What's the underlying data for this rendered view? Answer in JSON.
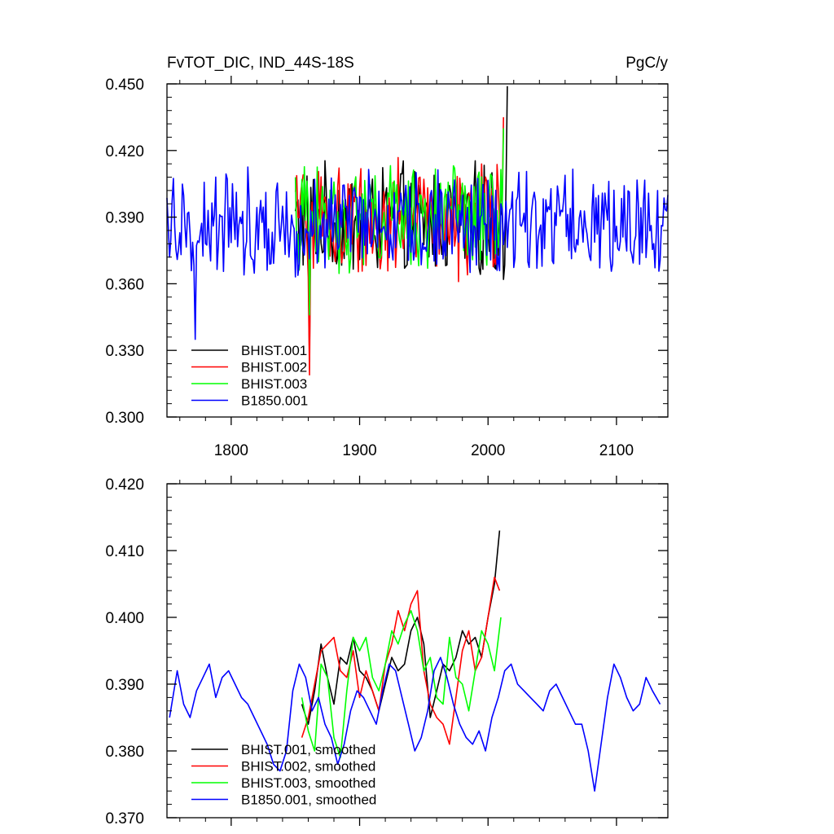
{
  "chart_data": [
    {
      "type": "line",
      "title": "FvTOT_DIC, IND_44S-18S",
      "units": "PgC/y",
      "xlim": [
        1750,
        2140
      ],
      "ylim": [
        0.3,
        0.45
      ],
      "xticks": [
        1800,
        1900,
        2000,
        2100
      ],
      "xtick_labels": [
        "1800",
        "1900",
        "2000",
        "2100"
      ],
      "yticks": [
        0.3,
        0.33,
        0.36,
        0.39,
        0.42,
        0.45
      ],
      "ytick_labels": [
        "0.300",
        "0.330",
        "0.360",
        "0.390",
        "0.420",
        "0.450"
      ],
      "grid": false,
      "legend_position": "bottom-left",
      "series": [
        {
          "name": "BHIST.001",
          "color": "#000000",
          "x_start": 1850,
          "x_end": 2015,
          "mean": 0.388,
          "amplitude": 0.021,
          "end_value": 0.449,
          "min_value": 0.325
        },
        {
          "name": "BHIST.002",
          "color": "#ff0000",
          "x_start": 1850,
          "x_end": 2012,
          "mean": 0.389,
          "amplitude": 0.022,
          "end_value": 0.435,
          "min_value": 0.319
        },
        {
          "name": "BHIST.003",
          "color": "#00ff00",
          "x_start": 1850,
          "x_end": 2012,
          "mean": 0.39,
          "amplitude": 0.02,
          "end_value": 0.43,
          "min_value": 0.346
        },
        {
          "name": "B1850.001",
          "color": "#0000ff",
          "x_start": 1750,
          "x_end": 2140,
          "mean": 0.388,
          "amplitude": 0.02,
          "end_value": 0.4,
          "min_value": 0.335
        }
      ]
    },
    {
      "type": "line",
      "title": "",
      "units": "",
      "xlim": [
        1750,
        2140
      ],
      "ylim": [
        0.37,
        0.42
      ],
      "xticks": [
        1800,
        1900,
        2000,
        2100
      ],
      "xtick_labels": [],
      "yticks": [
        0.37,
        0.38,
        0.39,
        0.4,
        0.41,
        0.42
      ],
      "ytick_labels": [
        "0.370",
        "0.380",
        "0.390",
        "0.400",
        "0.410",
        "0.420"
      ],
      "grid": false,
      "legend_position": "bottom-left",
      "series": [
        {
          "name": "BHIST.001, smoothed",
          "color": "#000000",
          "x_start": 1855,
          "x_end": 2009,
          "x": [
            1855,
            1860,
            1865,
            1870,
            1875,
            1880,
            1885,
            1890,
            1895,
            1900,
            1905,
            1910,
            1915,
            1920,
            1925,
            1930,
            1935,
            1940,
            1945,
            1950,
            1955,
            1960,
            1965,
            1970,
            1975,
            1980,
            1985,
            1990,
            1995,
            2000,
            2005,
            2009
          ],
          "y": [
            0.387,
            0.384,
            0.389,
            0.396,
            0.391,
            0.387,
            0.394,
            0.393,
            0.397,
            0.392,
            0.391,
            0.389,
            0.386,
            0.39,
            0.394,
            0.392,
            0.393,
            0.398,
            0.4,
            0.396,
            0.385,
            0.389,
            0.393,
            0.392,
            0.394,
            0.398,
            0.396,
            0.397,
            0.394,
            0.4,
            0.405,
            0.413
          ]
        },
        {
          "name": "BHIST.002, smoothed",
          "color": "#ff0000",
          "x_start": 1855,
          "x_end": 2009,
          "x": [
            1855,
            1860,
            1865,
            1870,
            1875,
            1880,
            1885,
            1890,
            1895,
            1900,
            1905,
            1910,
            1915,
            1920,
            1925,
            1930,
            1935,
            1940,
            1945,
            1950,
            1955,
            1960,
            1965,
            1970,
            1975,
            1980,
            1985,
            1990,
            1995,
            2000,
            2005,
            2009
          ],
          "y": [
            0.382,
            0.385,
            0.39,
            0.395,
            0.396,
            0.397,
            0.392,
            0.391,
            0.395,
            0.388,
            0.392,
            0.389,
            0.386,
            0.393,
            0.396,
            0.401,
            0.398,
            0.402,
            0.404,
            0.392,
            0.387,
            0.385,
            0.384,
            0.381,
            0.388,
            0.395,
            0.398,
            0.392,
            0.394,
            0.4,
            0.406,
            0.404
          ]
        },
        {
          "name": "BHIST.003, smoothed",
          "color": "#00ff00",
          "x_start": 1855,
          "x_end": 2010,
          "x": [
            1855,
            1860,
            1865,
            1870,
            1875,
            1880,
            1885,
            1890,
            1895,
            1900,
            1905,
            1910,
            1915,
            1920,
            1925,
            1930,
            1935,
            1940,
            1945,
            1950,
            1955,
            1960,
            1965,
            1970,
            1975,
            1980,
            1985,
            1990,
            1995,
            2000,
            2005,
            2010
          ],
          "y": [
            0.388,
            0.383,
            0.38,
            0.393,
            0.391,
            0.382,
            0.379,
            0.389,
            0.397,
            0.395,
            0.397,
            0.391,
            0.389,
            0.393,
            0.398,
            0.396,
            0.399,
            0.401,
            0.398,
            0.392,
            0.394,
            0.388,
            0.387,
            0.397,
            0.391,
            0.39,
            0.386,
            0.392,
            0.398,
            0.396,
            0.392,
            0.4
          ]
        },
        {
          "name": "B1850.001, smoothed",
          "color": "#0000ff",
          "x_start": 1752,
          "x_end": 2134,
          "x": [
            1752,
            1758,
            1763,
            1768,
            1773,
            1778,
            1783,
            1788,
            1793,
            1798,
            1803,
            1808,
            1813,
            1818,
            1823,
            1828,
            1833,
            1838,
            1843,
            1848,
            1853,
            1858,
            1863,
            1868,
            1873,
            1878,
            1883,
            1888,
            1893,
            1898,
            1903,
            1908,
            1913,
            1918,
            1923,
            1928,
            1933,
            1938,
            1943,
            1948,
            1953,
            1958,
            1963,
            1968,
            1973,
            1978,
            1983,
            1988,
            1993,
            1998,
            2003,
            2008,
            2013,
            2018,
            2023,
            2028,
            2033,
            2038,
            2043,
            2048,
            2053,
            2058,
            2063,
            2068,
            2073,
            2078,
            2083,
            2088,
            2093,
            2098,
            2103,
            2108,
            2113,
            2118,
            2123,
            2128,
            2134
          ],
          "y": [
            0.385,
            0.392,
            0.387,
            0.385,
            0.389,
            0.391,
            0.393,
            0.388,
            0.391,
            0.392,
            0.39,
            0.388,
            0.387,
            0.385,
            0.383,
            0.381,
            0.378,
            0.377,
            0.38,
            0.389,
            0.393,
            0.391,
            0.386,
            0.388,
            0.384,
            0.382,
            0.378,
            0.381,
            0.386,
            0.389,
            0.388,
            0.386,
            0.384,
            0.389,
            0.393,
            0.392,
            0.388,
            0.384,
            0.38,
            0.382,
            0.386,
            0.392,
            0.394,
            0.391,
            0.387,
            0.384,
            0.382,
            0.381,
            0.383,
            0.38,
            0.385,
            0.388,
            0.392,
            0.393,
            0.39,
            0.389,
            0.388,
            0.387,
            0.386,
            0.389,
            0.39,
            0.388,
            0.386,
            0.384,
            0.384,
            0.38,
            0.374,
            0.381,
            0.388,
            0.393,
            0.391,
            0.388,
            0.386,
            0.387,
            0.391,
            0.389,
            0.387
          ]
        }
      ]
    }
  ]
}
